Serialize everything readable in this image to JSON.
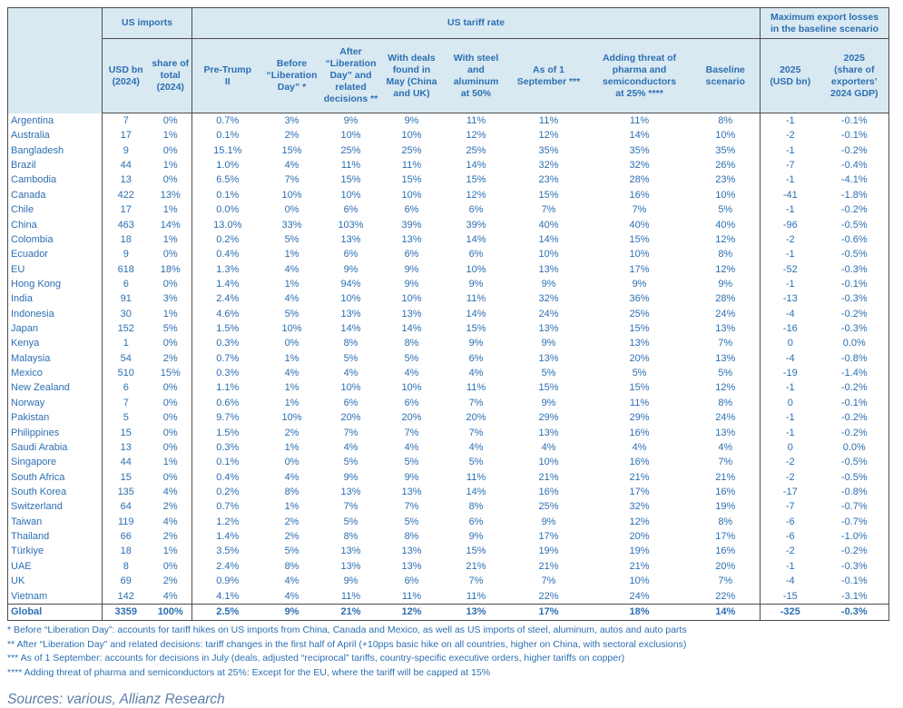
{
  "colors": {
    "table_text": "#2d6fb2",
    "header_background": "#d9e9f2",
    "border": "#4d4d4d",
    "sources_text": "#5c7ea9"
  },
  "chart_data": {
    "type": "table",
    "group_headers": {
      "us_imports": "US imports",
      "us_tariff_rate": "US tariff rate",
      "max_export_losses": "Maximum export losses\nin the baseline scenario"
    },
    "columns": [
      "USD bn\n(2024)",
      "share of\ntotal\n(2024)",
      "Pre-Trump\nII",
      "Before\n“Liberation\nDay” *",
      "After\n“Liberation\nDay” and\nrelated\ndecisions **",
      "With deals\nfound in\nMay (China\nand UK)",
      "With steel\nand\naluminum\nat 50%",
      "As of 1\nSeptember ***",
      "Adding threat of\npharma and\nsemiconductors\nat 25% ****",
      "Baseline\nscenario",
      "2025\n(USD bn)",
      "2025\n(share of\nexporters’\n2024 GDP)"
    ],
    "rows": [
      {
        "country": "Argentina",
        "values": [
          "7",
          "0%",
          "0.7%",
          "3%",
          "9%",
          "9%",
          "11%",
          "11%",
          "11%",
          "8%",
          "-1",
          "-0.1%"
        ]
      },
      {
        "country": "Australia",
        "values": [
          "17",
          "1%",
          "0.1%",
          "2%",
          "10%",
          "10%",
          "12%",
          "12%",
          "14%",
          "10%",
          "-2",
          "-0.1%"
        ]
      },
      {
        "country": "Bangladesh",
        "values": [
          "9",
          "0%",
          "15.1%",
          "15%",
          "25%",
          "25%",
          "25%",
          "35%",
          "35%",
          "35%",
          "-1",
          "-0.2%"
        ]
      },
      {
        "country": "Brazil",
        "values": [
          "44",
          "1%",
          "1.0%",
          "4%",
          "11%",
          "11%",
          "14%",
          "32%",
          "32%",
          "26%",
          "-7",
          "-0.4%"
        ]
      },
      {
        "country": "Cambodia",
        "values": [
          "13",
          "0%",
          "6.5%",
          "7%",
          "15%",
          "15%",
          "15%",
          "23%",
          "28%",
          "23%",
          "-1",
          "-4.1%"
        ]
      },
      {
        "country": "Canada",
        "values": [
          "422",
          "13%",
          "0.1%",
          "10%",
          "10%",
          "10%",
          "12%",
          "15%",
          "16%",
          "10%",
          "-41",
          "-1.8%"
        ]
      },
      {
        "country": "Chile",
        "values": [
          "17",
          "1%",
          "0.0%",
          "0%",
          "6%",
          "6%",
          "6%",
          "7%",
          "7%",
          "5%",
          "-1",
          "-0.2%"
        ]
      },
      {
        "country": "China",
        "values": [
          "463",
          "14%",
          "13.0%",
          "33%",
          "103%",
          "39%",
          "39%",
          "40%",
          "40%",
          "40%",
          "-96",
          "-0.5%"
        ]
      },
      {
        "country": "Colombia",
        "values": [
          "18",
          "1%",
          "0.2%",
          "5%",
          "13%",
          "13%",
          "14%",
          "14%",
          "15%",
          "12%",
          "-2",
          "-0.6%"
        ]
      },
      {
        "country": "Ecuador",
        "values": [
          "9",
          "0%",
          "0.4%",
          "1%",
          "6%",
          "6%",
          "6%",
          "10%",
          "10%",
          "8%",
          "-1",
          "-0.5%"
        ]
      },
      {
        "country": "EU",
        "values": [
          "618",
          "18%",
          "1.3%",
          "4%",
          "9%",
          "9%",
          "10%",
          "13%",
          "17%",
          "12%",
          "-52",
          "-0.3%"
        ]
      },
      {
        "country": "Hong Kong",
        "values": [
          "6",
          "0%",
          "1.4%",
          "1%",
          "94%",
          "9%",
          "9%",
          "9%",
          "9%",
          "9%",
          "-1",
          "-0.1%"
        ]
      },
      {
        "country": "India",
        "values": [
          "91",
          "3%",
          "2.4%",
          "4%",
          "10%",
          "10%",
          "11%",
          "32%",
          "36%",
          "28%",
          "-13",
          "-0.3%"
        ]
      },
      {
        "country": "Indonesia",
        "values": [
          "30",
          "1%",
          "4.6%",
          "5%",
          "13%",
          "13%",
          "14%",
          "24%",
          "25%",
          "24%",
          "-4",
          "-0.2%"
        ]
      },
      {
        "country": "Japan",
        "values": [
          "152",
          "5%",
          "1.5%",
          "10%",
          "14%",
          "14%",
          "15%",
          "13%",
          "15%",
          "13%",
          "-16",
          "-0.3%"
        ]
      },
      {
        "country": "Kenya",
        "values": [
          "1",
          "0%",
          "0.3%",
          "0%",
          "8%",
          "8%",
          "9%",
          "9%",
          "13%",
          "7%",
          "0",
          "0.0%"
        ]
      },
      {
        "country": "Malaysia",
        "values": [
          "54",
          "2%",
          "0.7%",
          "1%",
          "5%",
          "5%",
          "6%",
          "13%",
          "20%",
          "13%",
          "-4",
          "-0.8%"
        ]
      },
      {
        "country": "Mexico",
        "values": [
          "510",
          "15%",
          "0.3%",
          "4%",
          "4%",
          "4%",
          "4%",
          "5%",
          "5%",
          "5%",
          "-19",
          "-1.4%"
        ]
      },
      {
        "country": "New Zealand",
        "values": [
          "6",
          "0%",
          "1.1%",
          "1%",
          "10%",
          "10%",
          "11%",
          "15%",
          "15%",
          "12%",
          "-1",
          "-0.2%"
        ]
      },
      {
        "country": "Norway",
        "values": [
          "7",
          "0%",
          "0.6%",
          "1%",
          "6%",
          "6%",
          "7%",
          "9%",
          "11%",
          "8%",
          "0",
          "-0.1%"
        ]
      },
      {
        "country": "Pakistan",
        "values": [
          "5",
          "0%",
          "9.7%",
          "10%",
          "20%",
          "20%",
          "20%",
          "29%",
          "29%",
          "24%",
          "-1",
          "-0.2%"
        ]
      },
      {
        "country": "Philippines",
        "values": [
          "15",
          "0%",
          "1.5%",
          "2%",
          "7%",
          "7%",
          "7%",
          "13%",
          "16%",
          "13%",
          "-1",
          "-0.2%"
        ]
      },
      {
        "country": "Saudi Arabia",
        "values": [
          "13",
          "0%",
          "0.3%",
          "1%",
          "4%",
          "4%",
          "4%",
          "4%",
          "4%",
          "4%",
          "0",
          "0.0%"
        ]
      },
      {
        "country": "Singapore",
        "values": [
          "44",
          "1%",
          "0.1%",
          "0%",
          "5%",
          "5%",
          "5%",
          "10%",
          "16%",
          "7%",
          "-2",
          "-0.5%"
        ]
      },
      {
        "country": "South Africa",
        "values": [
          "15",
          "0%",
          "0.4%",
          "4%",
          "9%",
          "9%",
          "11%",
          "21%",
          "21%",
          "21%",
          "-2",
          "-0.5%"
        ]
      },
      {
        "country": "South Korea",
        "values": [
          "135",
          "4%",
          "0.2%",
          "8%",
          "13%",
          "13%",
          "14%",
          "16%",
          "17%",
          "16%",
          "-17",
          "-0.8%"
        ]
      },
      {
        "country": "Switzerland",
        "values": [
          "64",
          "2%",
          "0.7%",
          "1%",
          "7%",
          "7%",
          "8%",
          "25%",
          "32%",
          "19%",
          "-7",
          "-0.7%"
        ]
      },
      {
        "country": "Taiwan",
        "values": [
          "119",
          "4%",
          "1.2%",
          "2%",
          "5%",
          "5%",
          "6%",
          "9%",
          "12%",
          "8%",
          "-6",
          "-0.7%"
        ]
      },
      {
        "country": "Thailand",
        "values": [
          "66",
          "2%",
          "1.4%",
          "2%",
          "8%",
          "8%",
          "9%",
          "17%",
          "20%",
          "17%",
          "-6",
          "-1.0%"
        ]
      },
      {
        "country": "Türkiye",
        "values": [
          "18",
          "1%",
          "3.5%",
          "5%",
          "13%",
          "13%",
          "15%",
          "19%",
          "19%",
          "16%",
          "-2",
          "-0.2%"
        ]
      },
      {
        "country": "UAE",
        "values": [
          "8",
          "0%",
          "2.4%",
          "8%",
          "13%",
          "13%",
          "21%",
          "21%",
          "21%",
          "20%",
          "-1",
          "-0.3%"
        ]
      },
      {
        "country": "UK",
        "values": [
          "69",
          "2%",
          "0.9%",
          "4%",
          "9%",
          "6%",
          "7%",
          "7%",
          "10%",
          "7%",
          "-4",
          "-0.1%"
        ]
      },
      {
        "country": "Vietnam",
        "values": [
          "142",
          "4%",
          "4.1%",
          "4%",
          "11%",
          "11%",
          "11%",
          "22%",
          "24%",
          "22%",
          "-15",
          "-3.1%"
        ]
      }
    ],
    "total": {
      "country": "Global",
      "values": [
        "3359",
        "100%",
        "2.5%",
        "9%",
        "21%",
        "12%",
        "13%",
        "17%",
        "18%",
        "14%",
        "-325",
        "-0.3%"
      ]
    }
  },
  "footnotes": [
    "* Before “Liberation Day”: accounts for tariff hikes on US imports from China, Canada and Mexico, as well as US imports of steel, aluminum, autos and auto parts",
    "** After “Liberation Day” and related decisions: tariff changes in the first half of April (+10pps basic hike on all countries, higher on China, with sectoral exclusions)",
    "*** As of 1 September: accounts for decisions in July (deals, adjusted “reciprocal” tariffs, country-specific executive orders, higher tariffs on copper)",
    "**** Adding threat of pharma and semiconductors at 25%: Except for the EU, where the tariff will be capped at 15%"
  ],
  "sources": "Sources: various, Allianz Research"
}
